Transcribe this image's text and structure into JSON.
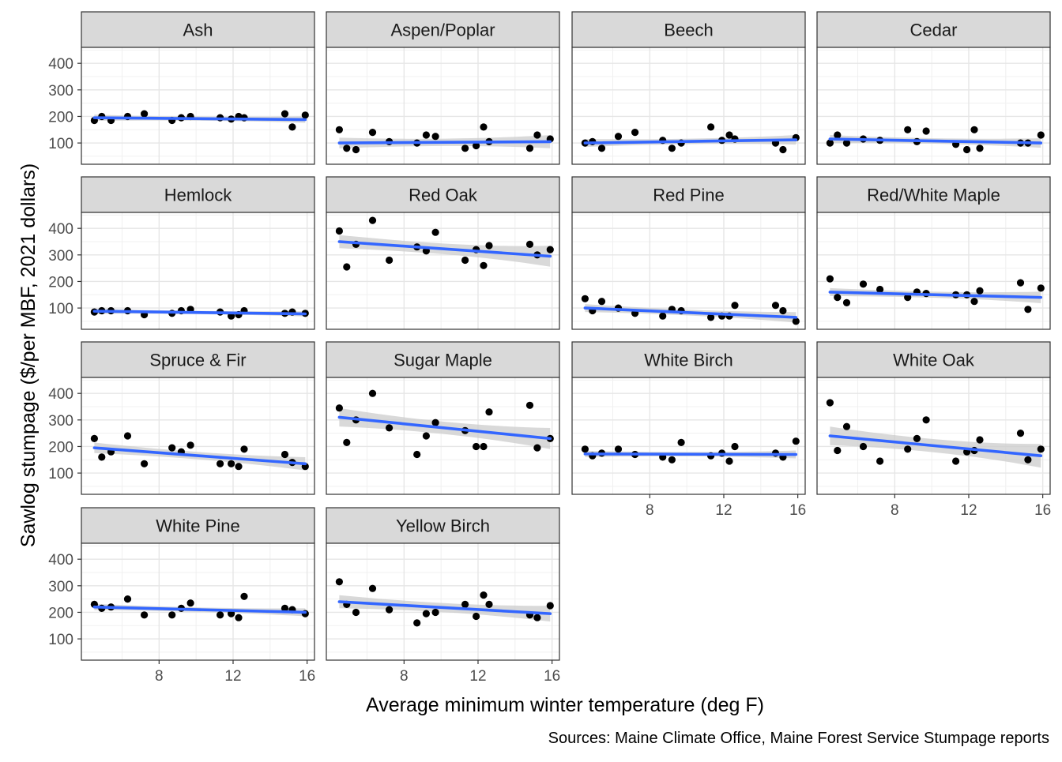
{
  "chart_data": {
    "type": "scatter",
    "facet": true,
    "xlabel": "Average minimum winter temperature (deg F)",
    "ylabel": "Sawlog stumpage ($/per MBF, 2021 dollars)",
    "caption": "Sources: Maine Climate Office, Maine Forest Service Stumpage reports",
    "xlim": [
      3.8,
      16.4
    ],
    "ylim": [
      20,
      460
    ],
    "x_ticks": [
      8,
      12,
      16
    ],
    "y_ticks": [
      100,
      200,
      300,
      400
    ],
    "grid": true,
    "trend": "linear fit with confidence band",
    "colors": {
      "fit_line": "#3366FF",
      "band": "#cccccc",
      "points": "#000000",
      "strip": "#d9d9d9"
    },
    "x": [
      4.5,
      4.9,
      5.4,
      6.3,
      7.2,
      8.7,
      9.2,
      9.7,
      11.3,
      11.9,
      12.3,
      12.6,
      14.8,
      15.2,
      15.9
    ],
    "panels": [
      {
        "name": "Ash",
        "values": [
          185,
          200,
          185,
          200,
          210,
          185,
          195,
          200,
          195,
          190,
          200,
          195,
          210,
          160,
          205
        ],
        "fit": [
          195,
          188
        ],
        "band": [
          12,
          12
        ]
      },
      {
        "name": "Aspen/Poplar",
        "values": [
          150,
          80,
          75,
          140,
          105,
          100,
          130,
          125,
          80,
          90,
          160,
          105,
          80,
          130,
          115
        ],
        "fit": [
          100,
          105
        ],
        "band": [
          20,
          25
        ]
      },
      {
        "name": "Beech",
        "values": [
          100,
          105,
          80,
          125,
          140,
          110,
          80,
          100,
          160,
          110,
          130,
          115,
          100,
          75,
          120
        ],
        "fit": [
          100,
          112
        ],
        "band": [
          15,
          18
        ]
      },
      {
        "name": "Cedar",
        "values": [
          100,
          130,
          100,
          115,
          110,
          150,
          105,
          145,
          95,
          75,
          150,
          80,
          100,
          100,
          130
        ],
        "fit": [
          115,
          100
        ],
        "band": [
          15,
          18
        ]
      },
      {
        "name": "Hemlock",
        "values": [
          85,
          90,
          90,
          90,
          75,
          80,
          90,
          95,
          85,
          70,
          75,
          90,
          80,
          85,
          80
        ],
        "fit": [
          88,
          78
        ],
        "band": [
          10,
          10
        ]
      },
      {
        "name": "Red Oak",
        "values": [
          390,
          255,
          340,
          430,
          280,
          330,
          315,
          385,
          280,
          320,
          260,
          335,
          340,
          300,
          320
        ],
        "fit": [
          350,
          295
        ],
        "band": [
          25,
          40
        ]
      },
      {
        "name": "Red Pine",
        "values": [
          135,
          90,
          125,
          100,
          80,
          70,
          95,
          90,
          65,
          70,
          70,
          110,
          110,
          90,
          50
        ],
        "fit": [
          100,
          65
        ],
        "band": [
          15,
          20
        ]
      },
      {
        "name": "Red/White Maple",
        "values": [
          210,
          140,
          120,
          190,
          170,
          140,
          160,
          155,
          150,
          150,
          125,
          165,
          195,
          95,
          175
        ],
        "fit": [
          160,
          140
        ],
        "band": [
          15,
          22
        ]
      },
      {
        "name": "Spruce & Fir",
        "values": [
          230,
          160,
          180,
          240,
          135,
          195,
          180,
          205,
          135,
          135,
          125,
          190,
          170,
          140,
          125
        ],
        "fit": [
          195,
          135
        ],
        "band": [
          20,
          25
        ]
      },
      {
        "name": "Sugar Maple",
        "values": [
          345,
          215,
          300,
          400,
          270,
          170,
          240,
          290,
          260,
          200,
          200,
          330,
          355,
          195,
          230
        ],
        "fit": [
          310,
          230
        ],
        "band": [
          35,
          40
        ]
      },
      {
        "name": "White Birch",
        "values": [
          190,
          165,
          175,
          190,
          170,
          160,
          150,
          215,
          165,
          175,
          145,
          200,
          175,
          160,
          220
        ],
        "fit": [
          172,
          170
        ],
        "band": [
          12,
          15
        ]
      },
      {
        "name": "White Oak",
        "values": [
          365,
          185,
          275,
          200,
          145,
          190,
          230,
          300,
          145,
          180,
          185,
          225,
          250,
          150,
          190
        ],
        "fit": [
          240,
          165
        ],
        "band": [
          35,
          45
        ]
      },
      {
        "name": "White Pine",
        "values": [
          230,
          215,
          220,
          250,
          190,
          190,
          215,
          235,
          190,
          195,
          180,
          260,
          215,
          210,
          195
        ],
        "fit": [
          220,
          200
        ],
        "band": [
          12,
          15
        ]
      },
      {
        "name": "Yellow Birch",
        "values": [
          315,
          230,
          200,
          290,
          210,
          160,
          195,
          200,
          230,
          185,
          265,
          230,
          190,
          180,
          225
        ],
        "fit": [
          240,
          195
        ],
        "band": [
          25,
          30
        ]
      }
    ]
  }
}
